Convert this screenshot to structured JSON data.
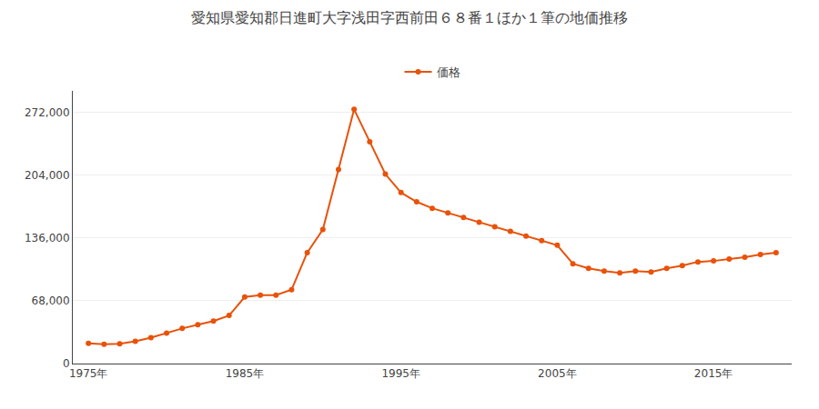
{
  "chart_data": {
    "type": "line",
    "title": "愛知県愛知郡日進町大字浅田字西前田６８番１ほか１筆の地価推移",
    "x": [
      1975,
      1976,
      1977,
      1978,
      1979,
      1980,
      1981,
      1982,
      1983,
      1984,
      1985,
      1986,
      1987,
      1988,
      1989,
      1990,
      1991,
      1992,
      1993,
      1994,
      1995,
      1996,
      1997,
      1998,
      1999,
      2000,
      2001,
      2002,
      2003,
      2004,
      2005,
      2006,
      2007,
      2008,
      2009,
      2010,
      2011,
      2012,
      2013,
      2014,
      2015,
      2016,
      2017,
      2018,
      2019
    ],
    "series": [
      {
        "name": "価格",
        "color": "#e8520a",
        "marker": "circle",
        "values": [
          22000,
          21000,
          21500,
          24000,
          28000,
          33000,
          38000,
          42000,
          46000,
          52000,
          72000,
          74000,
          74000,
          80000,
          120000,
          145000,
          210000,
          275000,
          240000,
          205000,
          185000,
          175000,
          168000,
          163000,
          158000,
          153000,
          148000,
          143000,
          138000,
          133000,
          128000,
          108000,
          103000,
          100000,
          98000,
          100000,
          99000,
          103000,
          106000,
          110000,
          111000,
          113000,
          115000,
          118000,
          120000
        ]
      }
    ],
    "xlim": [
      1974,
      2020
    ],
    "xticks": [
      {
        "value": 1975,
        "label": "1975年"
      },
      {
        "value": 1985,
        "label": "1985年"
      },
      {
        "value": 1995,
        "label": "1995年"
      },
      {
        "value": 2005,
        "label": "2005年"
      },
      {
        "value": 2015,
        "label": "2015年"
      }
    ],
    "ylim": [
      0,
      295000
    ],
    "yticks": [
      0,
      {
        "value": 68000,
        "label": "68,000"
      },
      {
        "value": 136000,
        "label": "136,000"
      },
      {
        "value": 204000,
        "label": "204,000"
      },
      {
        "value": 272000,
        "label": "272,000"
      }
    ],
    "grid": "y",
    "legend": "top"
  }
}
